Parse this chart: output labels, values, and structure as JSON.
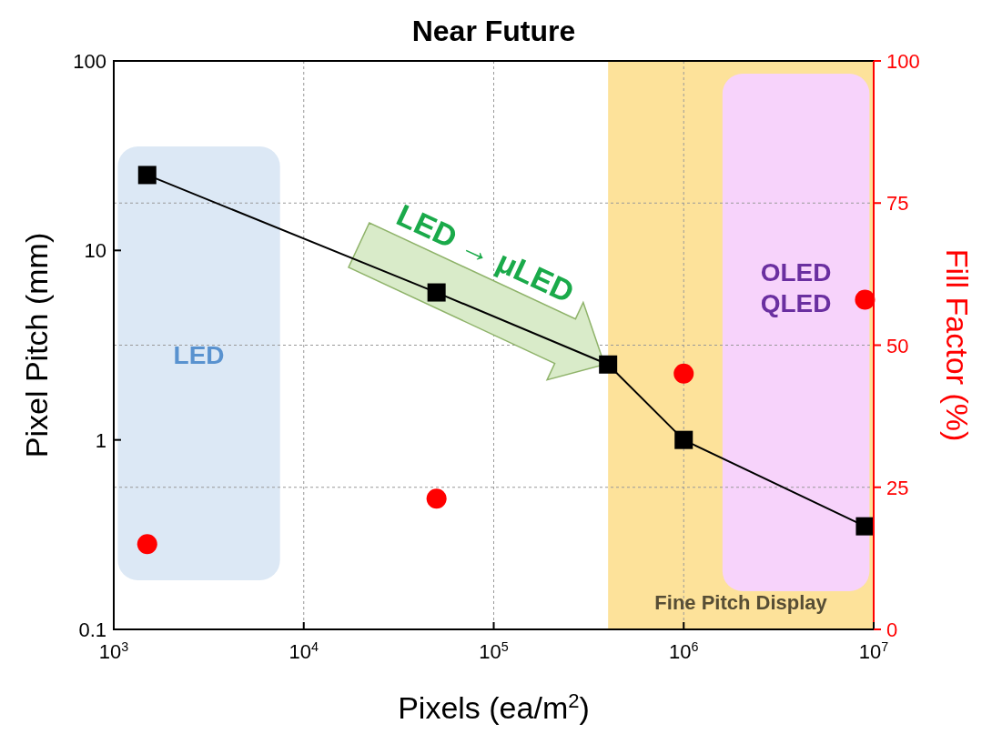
{
  "chart_data": {
    "type": "line",
    "title": "Near Future",
    "xlabel": "Pixels (ea/m$^{2}$)",
    "ylabel": "Pixel Pitch (mm)",
    "y2label": "Fill Factor (%)",
    "log": "xy",
    "grid": true,
    "xlim": [
      1000,
      10000000
    ],
    "xticks": [
      {
        "value": 1000,
        "label": "10$^{3}$"
      },
      {
        "value": 10000,
        "label": "10$^{4}$"
      },
      {
        "value": 100000,
        "label": "10$^{5}$"
      },
      {
        "value": 1000000,
        "label": "10$^{6}$"
      },
      {
        "value": 10000000,
        "label": "10$^{7}$"
      }
    ],
    "ylim": [
      0.1,
      100
    ],
    "yticks": [
      0.1,
      1,
      10,
      100
    ],
    "y2lim": [
      0,
      100
    ],
    "y2ticks": [
      0,
      25,
      50,
      75,
      100
    ],
    "series": [
      {
        "type": "line",
        "color": "#000000",
        "marker": "square",
        "x": [
          1500,
          50000,
          400000,
          1000000,
          9000000
        ],
        "values": [
          25,
          6,
          2.5,
          1,
          0.35
        ]
      },
      {
        "type": "scatter",
        "axis": "y2",
        "color": "#ff0000",
        "marker": "circle",
        "x": [
          1500,
          50000,
          1000000,
          9000000
        ],
        "values": [
          15,
          23,
          45,
          58
        ]
      }
    ],
    "bands": [
      {
        "axis": "x",
        "from": 400000,
        "to": 10000000,
        "label": "Fine Pitch Display",
        "color": "#fde29a"
      },
      {
        "axis": "x",
        "from": 1050,
        "to": 7500,
        "label": "LED",
        "color": "#dce8f5"
      },
      {
        "axis": "x",
        "from": 1600000,
        "to": 9500000,
        "label": "OLED\nQLED",
        "color": "#f7d3fb"
      }
    ],
    "annotations": [
      "LED → μLED"
    ]
  }
}
